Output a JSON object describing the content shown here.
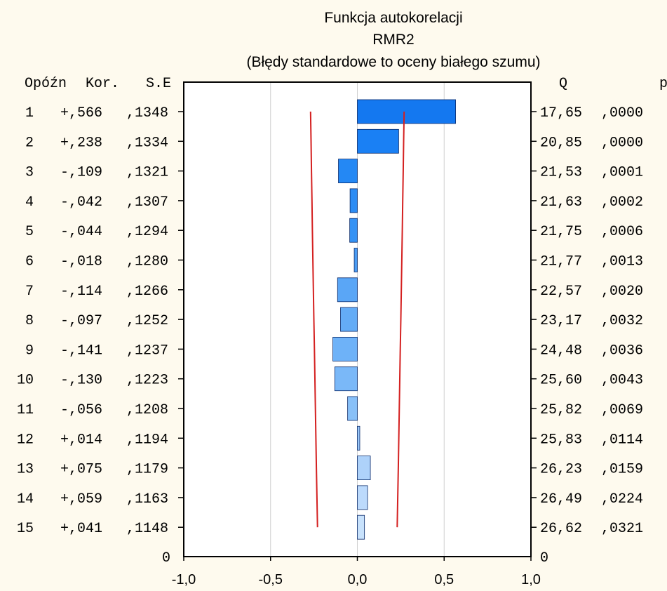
{
  "chart_data": {
    "type": "bar",
    "title": "Funkcja autokorelacji",
    "subtitle": "RMR2",
    "subtitle2": "(Błędy standardowe to oceny białego szumu)",
    "left_headers": {
      "lag": "Opóźn",
      "corr": "Kor.",
      "se": "S.E"
    },
    "right_headers": {
      "q": "Q",
      "p": "p"
    },
    "rows": [
      {
        "lag": "1",
        "corr_label": "+,566",
        "se_label": ",1348",
        "q_label": "17,65",
        "p_label": ",0000",
        "value": 0.566,
        "se": 0.1348
      },
      {
        "lag": "2",
        "corr_label": "+,238",
        "se_label": ",1334",
        "q_label": "20,85",
        "p_label": ",0000",
        "value": 0.238,
        "se": 0.1334
      },
      {
        "lag": "3",
        "corr_label": "-,109",
        "se_label": ",1321",
        "q_label": "21,53",
        "p_label": ",0001",
        "value": -0.109,
        "se": 0.1321
      },
      {
        "lag": "4",
        "corr_label": "-,042",
        "se_label": ",1307",
        "q_label": "21,63",
        "p_label": ",0002",
        "value": -0.042,
        "se": 0.1307
      },
      {
        "lag": "5",
        "corr_label": "-,044",
        "se_label": ",1294",
        "q_label": "21,75",
        "p_label": ",0006",
        "value": -0.044,
        "se": 0.1294
      },
      {
        "lag": "6",
        "corr_label": "-,018",
        "se_label": ",1280",
        "q_label": "21,77",
        "p_label": ",0013",
        "value": -0.018,
        "se": 0.128
      },
      {
        "lag": "7",
        "corr_label": "-,114",
        "se_label": ",1266",
        "q_label": "22,57",
        "p_label": ",0020",
        "value": -0.114,
        "se": 0.1266
      },
      {
        "lag": "8",
        "corr_label": "-,097",
        "se_label": ",1252",
        "q_label": "23,17",
        "p_label": ",0032",
        "value": -0.097,
        "se": 0.1252
      },
      {
        "lag": "9",
        "corr_label": "-,141",
        "se_label": ",1237",
        "q_label": "24,48",
        "p_label": ",0036",
        "value": -0.141,
        "se": 0.1237
      },
      {
        "lag": "10",
        "corr_label": "-,130",
        "se_label": ",1223",
        "q_label": "25,60",
        "p_label": ",0043",
        "value": -0.13,
        "se": 0.1223
      },
      {
        "lag": "11",
        "corr_label": "-,056",
        "se_label": ",1208",
        "q_label": "25,82",
        "p_label": ",0069",
        "value": -0.056,
        "se": 0.1208
      },
      {
        "lag": "12",
        "corr_label": "+,014",
        "se_label": ",1194",
        "q_label": "25,83",
        "p_label": ",0114",
        "value": 0.014,
        "se": 0.1194
      },
      {
        "lag": "13",
        "corr_label": "+,075",
        "se_label": ",1179",
        "q_label": "26,23",
        "p_label": ",0159",
        "value": 0.075,
        "se": 0.1179
      },
      {
        "lag": "14",
        "corr_label": "+,059",
        "se_label": ",1163",
        "q_label": "26,49",
        "p_label": ",0224",
        "value": 0.059,
        "se": 0.1163
      },
      {
        "lag": "15",
        "corr_label": "+,041",
        "se_label": ",1148",
        "q_label": "26,62",
        "p_label": ",0321",
        "value": 0.041,
        "se": 0.1148
      }
    ],
    "xlim": [
      -1,
      1
    ],
    "xticks": [
      -1,
      -0.5,
      0,
      0.5,
      1
    ],
    "xtick_labels": [
      "-1,0",
      "-0,5",
      "0,0",
      "0,5",
      "1,0"
    ],
    "zero_label_left": "0",
    "zero_label_right": "0",
    "grid": true,
    "bar_colors": [
      "#1478f0",
      "#1a80f4",
      "#2488f4",
      "#2c8cf4",
      "#3592f4",
      "#4a9cf4",
      "#5aa6f6",
      "#64acf6",
      "#6eb2f8",
      "#7ab8f8",
      "#88c0f8",
      "#9ac8fa",
      "#aed2fa",
      "#bcdafc",
      "#c8e2fc"
    ],
    "limit_color": "#d42020",
    "background": "#fefaee"
  }
}
